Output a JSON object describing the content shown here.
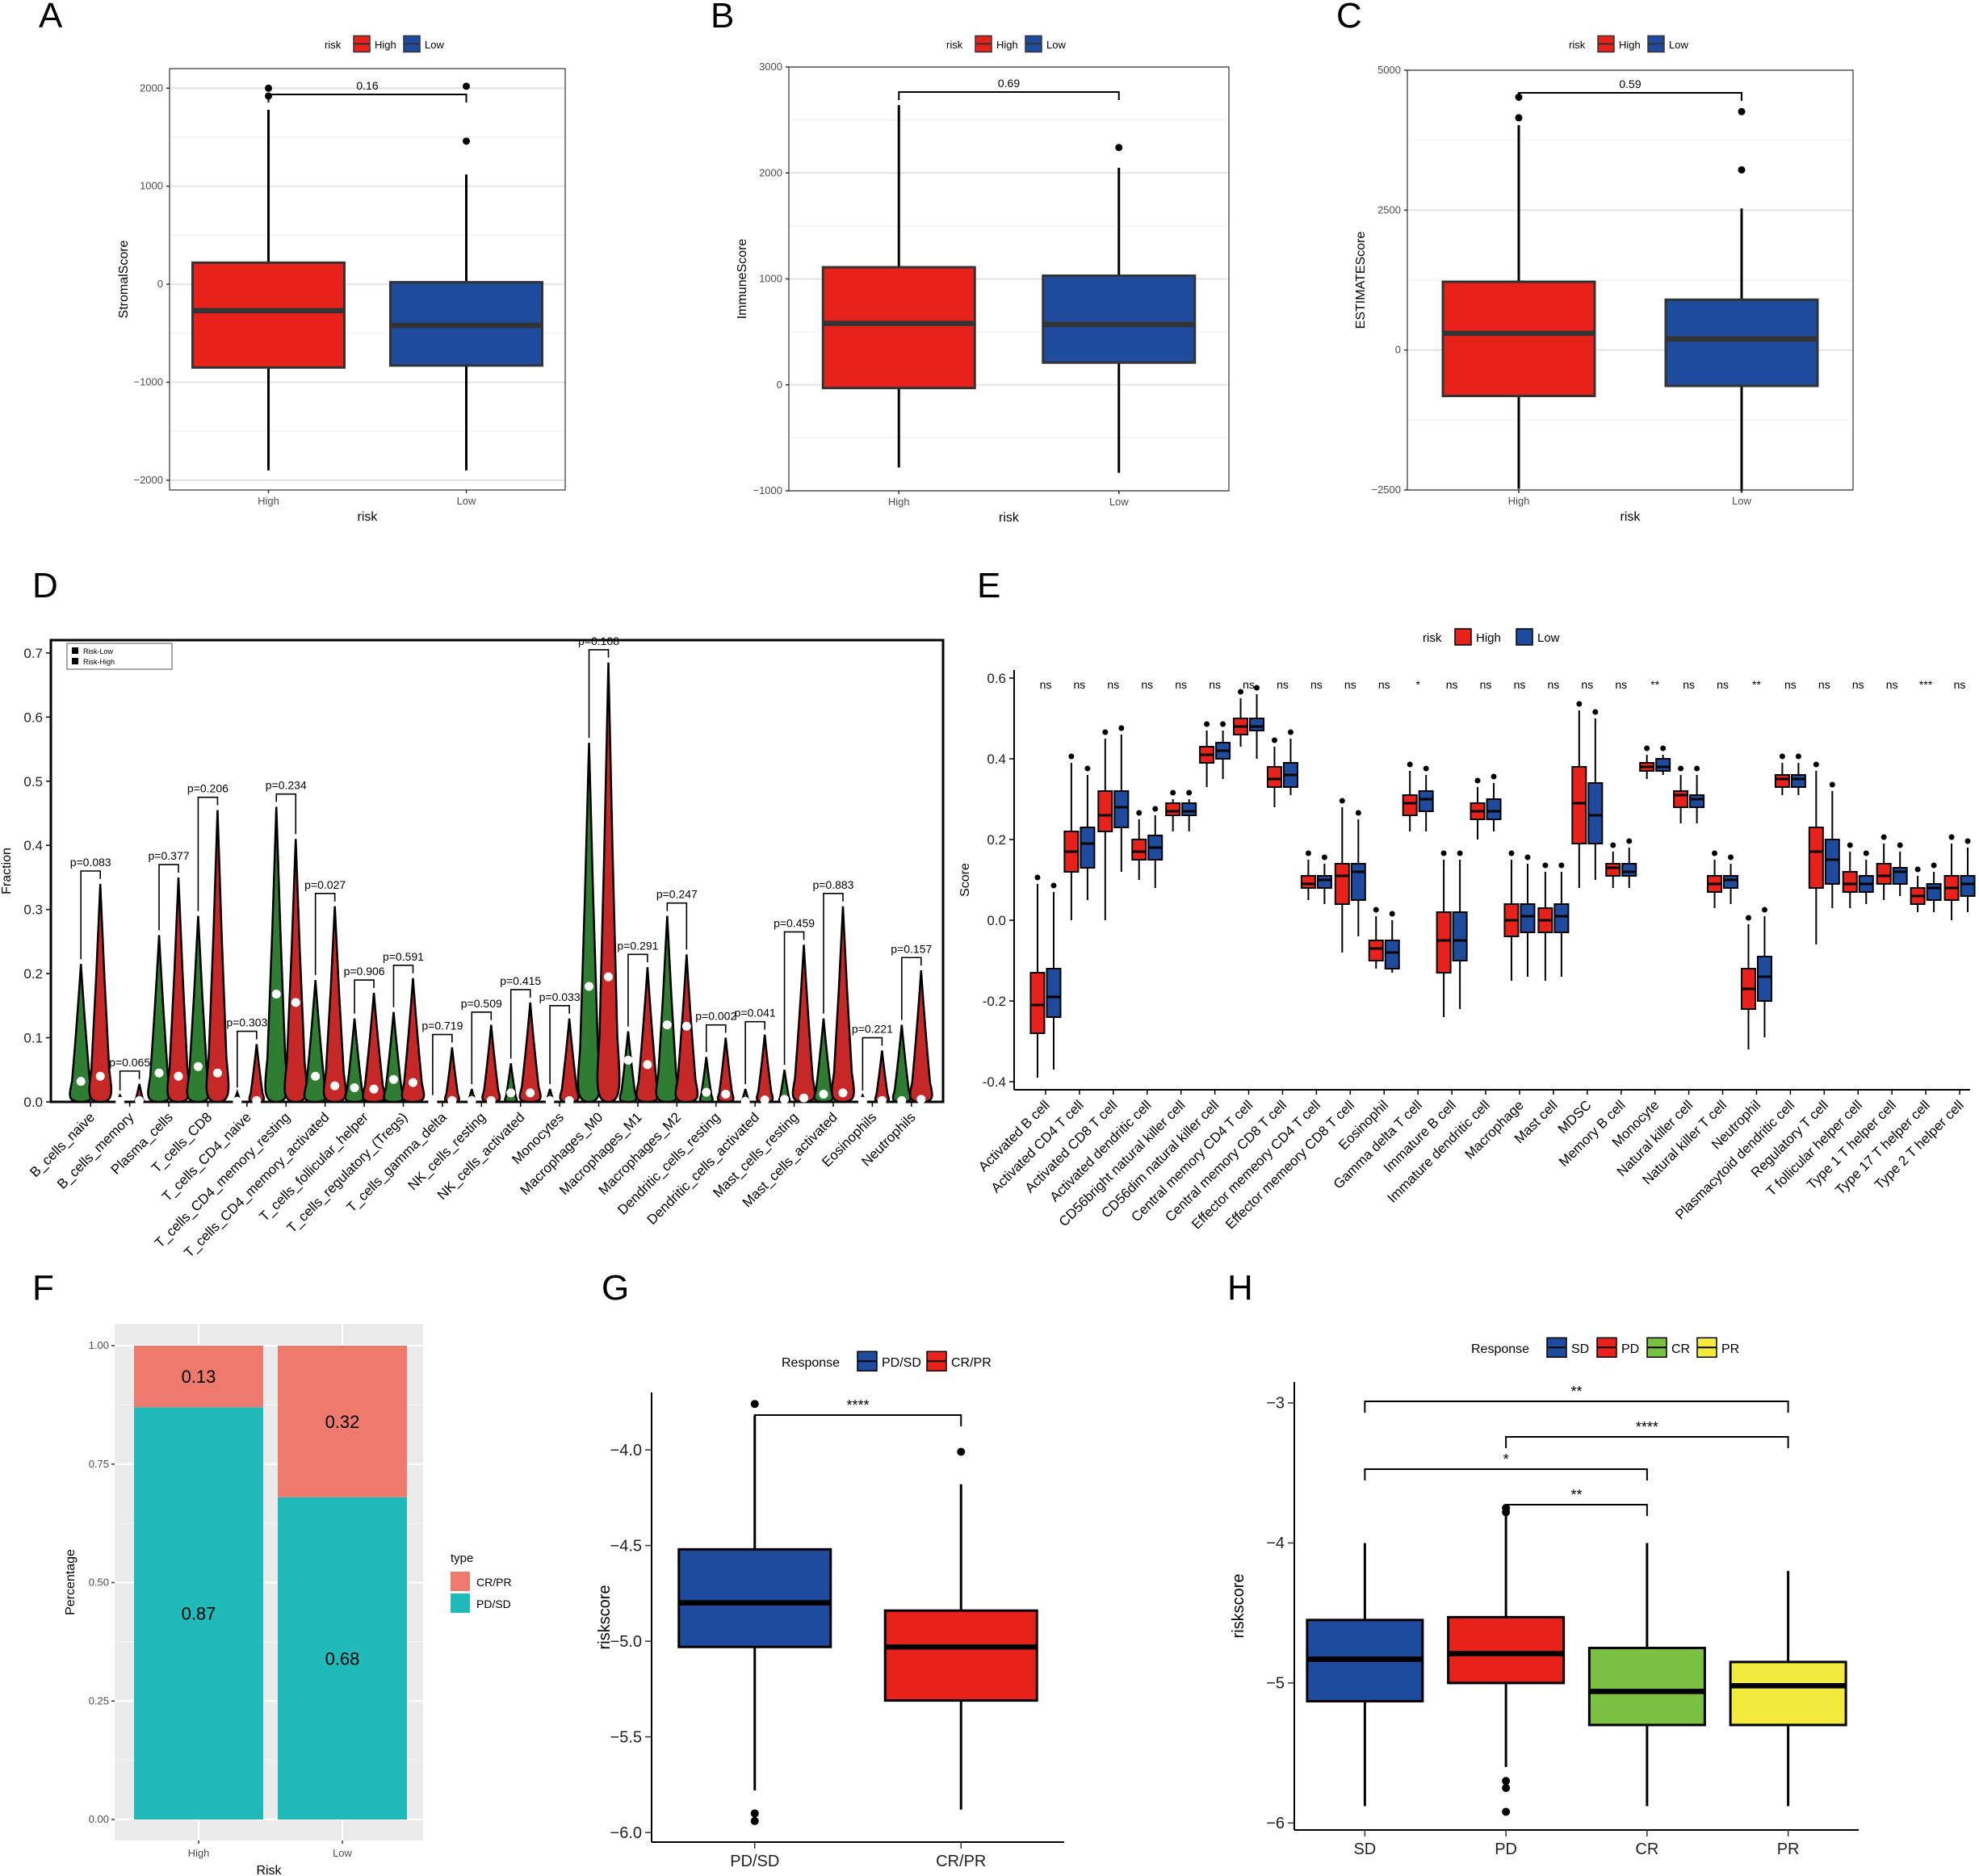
{
  "panel_letters": [
    "A",
    "B",
    "C",
    "D",
    "E",
    "F",
    "G",
    "H"
  ],
  "colors": {
    "high": "#e8221b",
    "low": "#1f4b9e",
    "green": "#7ac043",
    "yellow": "#f2ea3d",
    "salmon": "#ee7a6e",
    "teal": "#1fbab9",
    "violin_green": "#2e7d32",
    "violin_red": "#c62828"
  },
  "chart_data": [
    {
      "id": "A",
      "type": "box",
      "title": "",
      "xlabel": "risk",
      "ylabel": "StromalScore",
      "legend_title": "risk",
      "legend": [
        "High",
        "Low"
      ],
      "categories": [
        "High",
        "Low"
      ],
      "ylim": [
        -2100,
        2200
      ],
      "yticks": [
        -2000,
        -1000,
        0,
        1000,
        2000
      ],
      "ytick_labels": [
        "−2000",
        "−1000",
        "0",
        "1000",
        "2000"
      ],
      "boxes": [
        {
          "name": "High",
          "min": -1900,
          "q1": -850,
          "median": -270,
          "q3": 220,
          "max": 1780,
          "outliers": [
            1920,
            2000
          ]
        },
        {
          "name": "Low",
          "min": -1900,
          "q1": -830,
          "median": -420,
          "q3": 20,
          "max": 1120,
          "outliers": [
            1460,
            2020
          ]
        }
      ],
      "comparisons": [
        {
          "from": 0,
          "to": 1,
          "label": "0.16"
        }
      ]
    },
    {
      "id": "B",
      "type": "box",
      "title": "",
      "xlabel": "risk",
      "ylabel": "ImmuneScore",
      "legend_title": "risk",
      "legend": [
        "High",
        "Low"
      ],
      "categories": [
        "High",
        "Low"
      ],
      "ylim": [
        -1000,
        3000
      ],
      "yticks": [
        -1000,
        0,
        1000,
        2000,
        3000
      ],
      "ytick_labels": [
        "−1000",
        "0",
        "1000",
        "2000",
        "3000"
      ],
      "boxes": [
        {
          "name": "High",
          "min": -780,
          "q1": -30,
          "median": 580,
          "q3": 1110,
          "max": 2640,
          "outliers": []
        },
        {
          "name": "Low",
          "min": -830,
          "q1": 210,
          "median": 570,
          "q3": 1030,
          "max": 2050,
          "outliers": [
            2240
          ]
        }
      ],
      "comparisons": [
        {
          "from": 0,
          "to": 1,
          "label": "0.69"
        }
      ]
    },
    {
      "id": "C",
      "type": "box",
      "title": "",
      "xlabel": "risk",
      "ylabel": "ESTIMATEScore",
      "legend_title": "risk",
      "legend": [
        "High",
        "Low"
      ],
      "categories": [
        "High",
        "Low"
      ],
      "ylim": [
        -2500,
        5000
      ],
      "yticks": [
        -2500,
        0,
        2500,
        5000
      ],
      "ytick_labels": [
        "−2500",
        "0",
        "2500",
        "5000"
      ],
      "boxes": [
        {
          "name": "High",
          "min": -2480,
          "q1": -820,
          "median": 300,
          "q3": 1220,
          "max": 4020,
          "outliers": [
            4150,
            4520
          ]
        },
        {
          "name": "Low",
          "min": -2530,
          "q1": -640,
          "median": 200,
          "q3": 900,
          "max": 2530,
          "outliers": [
            3220,
            4260
          ]
        }
      ],
      "comparisons": [
        {
          "from": 0,
          "to": 1,
          "label": "0.59"
        }
      ]
    },
    {
      "id": "D",
      "type": "violin",
      "xlabel": "",
      "ylabel": "Fraction",
      "legend": [
        "Risk-Low",
        "Risk-High"
      ],
      "ylim": [
        0,
        0.72
      ],
      "yticks": [
        0,
        0.1,
        0.2,
        0.3,
        0.4,
        0.5,
        0.6,
        0.7
      ],
      "ytick_labels": [
        "0.0",
        "0.1",
        "0.2",
        "0.3",
        "0.4",
        "0.5",
        "0.6",
        "0.7"
      ],
      "categories": [
        "B_cells_naive",
        "B_cells_memory",
        "Plasma_cells",
        "T_cells_CD8",
        "T_cells_CD4_naive",
        "T_cells_CD4_memory_resting",
        "T_cells_CD4_memory_activated",
        "T_cells_follicular_helper",
        "T_cells_regulatory_(Tregs)",
        "T_cells_gamma_delta",
        "NK_cells_resting",
        "NK_cells_activated",
        "Monocytes",
        "Macrophages_M0",
        "Macrophages_M1",
        "Macrophages_M2",
        "Dendritic_cells_resting",
        "Dendritic_cells_activated",
        "Mast_cells_resting",
        "Mast_cells_activated",
        "Eosinophils",
        "Neutrophils"
      ],
      "p_values": [
        "p=0.083",
        "p=0.065",
        "p=0.377",
        "p=0.206",
        "p=0.303",
        "p=0.234",
        "p=0.027",
        "p=0.906",
        "p=0.591",
        "p=0.719",
        "p=0.509",
        "p=0.415",
        "p=0.033",
        "p=0.108",
        "p=0.291",
        "p=0.247",
        "p=0.002",
        "p=0.041",
        "p=0.459",
        "p=0.883",
        "p=0.221",
        "p=0.157"
      ],
      "low_max": [
        0.215,
        0.01,
        0.26,
        0.29,
        0.015,
        0.46,
        0.19,
        0.13,
        0.14,
        0.003,
        0.02,
        0.06,
        0.02,
        0.56,
        0.11,
        0.29,
        0.07,
        0.02,
        0.05,
        0.13,
        0.01,
        0.12
      ],
      "high_max": [
        0.34,
        0.028,
        0.35,
        0.455,
        0.09,
        0.41,
        0.305,
        0.17,
        0.193,
        0.085,
        0.12,
        0.155,
        0.13,
        0.685,
        0.21,
        0.23,
        0.1,
        0.105,
        0.245,
        0.305,
        0.08,
        0.205
      ],
      "low_median": [
        0.032,
        0.001,
        0.045,
        0.055,
        0.001,
        0.168,
        0.04,
        0.022,
        0.035,
        0.0,
        0.002,
        0.014,
        0.002,
        0.18,
        0.065,
        0.12,
        0.015,
        0.001,
        0.004,
        0.012,
        0.001,
        0.002
      ],
      "high_median": [
        0.04,
        0.002,
        0.04,
        0.045,
        0.002,
        0.155,
        0.025,
        0.02,
        0.03,
        0.002,
        0.002,
        0.014,
        0.002,
        0.195,
        0.058,
        0.118,
        0.012,
        0.003,
        0.006,
        0.014,
        0.002,
        0.004
      ]
    },
    {
      "id": "E",
      "type": "box",
      "xlabel": "",
      "ylabel": "Score",
      "legend_title": "risk",
      "legend": [
        "High",
        "Low"
      ],
      "ylim": [
        -0.42,
        0.62
      ],
      "yticks": [
        -0.4,
        -0.2,
        0.0,
        0.2,
        0.4,
        0.6
      ],
      "ytick_labels": [
        "-0.4",
        "-0.2",
        "0.0",
        "0.2",
        "0.4",
        "0.6"
      ],
      "categories": [
        "Activated B cell",
        "Activated CD4 T cell",
        "Activated CD8 T cell",
        "Activated dendritic cell",
        "CD56bright natural killer cell",
        "CD56dim natural killer cell",
        "Central memory CD4 T cell",
        "Central memory CD8 T cell",
        "Effector memeory CD4 T cell",
        "Effector memeory CD8 T cell",
        "Eosinophil",
        "Gamma delta T cell",
        "Immature  B cell",
        "Immature dendritic cell",
        "Macrophage",
        "Mast cell",
        "MDSC",
        "Memory B cell",
        "Monocyte",
        "Natural killer cell",
        "Natural killer T cell",
        "Neutrophil",
        "Plasmacytoid dendritic cell",
        "Regulatory T cell",
        "T follicular helper cell",
        "Type 1 T helper cell",
        "Type 17 T helper cell",
        "Type 2 T helper cell"
      ],
      "significance": [
        "ns",
        "ns",
        "ns",
        "ns",
        "ns",
        "ns",
        "ns",
        "ns",
        "ns",
        "ns",
        "ns",
        "*",
        "ns",
        "ns",
        "ns",
        "ns",
        "ns",
        "ns",
        "**",
        "ns",
        "ns",
        "**",
        "ns",
        "ns",
        "ns",
        "ns",
        "***",
        "ns"
      ],
      "high_boxes": [
        [
          -0.39,
          -0.28,
          -0.21,
          -0.13,
          0.09
        ],
        [
          0.0,
          0.12,
          0.17,
          0.22,
          0.39
        ],
        [
          0.0,
          0.22,
          0.26,
          0.32,
          0.45
        ],
        [
          0.1,
          0.15,
          0.17,
          0.2,
          0.25
        ],
        [
          0.22,
          0.26,
          0.27,
          0.29,
          0.3
        ],
        [
          0.33,
          0.39,
          0.41,
          0.43,
          0.47
        ],
        [
          0.43,
          0.46,
          0.48,
          0.5,
          0.55
        ],
        [
          0.28,
          0.33,
          0.35,
          0.38,
          0.43
        ],
        [
          0.05,
          0.08,
          0.09,
          0.11,
          0.15
        ],
        [
          -0.08,
          0.04,
          0.11,
          0.14,
          0.28
        ],
        [
          -0.12,
          -0.1,
          -0.07,
          -0.05,
          0.01
        ],
        [
          0.22,
          0.26,
          0.29,
          0.31,
          0.37
        ],
        [
          -0.24,
          -0.13,
          -0.05,
          0.02,
          0.15
        ],
        [
          0.2,
          0.25,
          0.27,
          0.29,
          0.33
        ],
        [
          -0.15,
          -0.04,
          0.0,
          0.04,
          0.15
        ],
        [
          -0.15,
          -0.03,
          0.0,
          0.03,
          0.12
        ],
        [
          0.08,
          0.19,
          0.29,
          0.38,
          0.52
        ],
        [
          0.08,
          0.11,
          0.13,
          0.14,
          0.17
        ],
        [
          0.35,
          0.37,
          0.38,
          0.39,
          0.41
        ],
        [
          0.24,
          0.28,
          0.31,
          0.32,
          0.36
        ],
        [
          0.03,
          0.07,
          0.09,
          0.11,
          0.15
        ],
        [
          -0.32,
          -0.22,
          -0.17,
          -0.12,
          -0.01
        ],
        [
          0.31,
          0.33,
          0.35,
          0.36,
          0.39
        ],
        [
          -0.06,
          0.08,
          0.17,
          0.23,
          0.37
        ],
        [
          0.03,
          0.07,
          0.09,
          0.12,
          0.17
        ],
        [
          0.05,
          0.09,
          0.11,
          0.14,
          0.19
        ],
        [
          0.02,
          0.04,
          0.06,
          0.08,
          0.11
        ],
        [
          0.0,
          0.05,
          0.08,
          0.11,
          0.19
        ]
      ],
      "low_boxes": [
        [
          -0.37,
          -0.24,
          -0.19,
          -0.12,
          0.07
        ],
        [
          0.05,
          0.13,
          0.19,
          0.23,
          0.36
        ],
        [
          0.12,
          0.23,
          0.28,
          0.32,
          0.46
        ],
        [
          0.08,
          0.15,
          0.18,
          0.21,
          0.26
        ],
        [
          0.22,
          0.26,
          0.27,
          0.29,
          0.3
        ],
        [
          0.35,
          0.4,
          0.42,
          0.44,
          0.47
        ],
        [
          0.4,
          0.47,
          0.48,
          0.5,
          0.56
        ],
        [
          0.31,
          0.33,
          0.36,
          0.39,
          0.45
        ],
        [
          0.04,
          0.08,
          0.1,
          0.11,
          0.14
        ],
        [
          -0.04,
          0.05,
          0.12,
          0.14,
          0.25
        ],
        [
          -0.13,
          -0.12,
          -0.08,
          -0.05,
          0.0
        ],
        [
          0.22,
          0.27,
          0.3,
          0.32,
          0.36
        ],
        [
          -0.22,
          -0.1,
          -0.05,
          0.02,
          0.15
        ],
        [
          0.22,
          0.25,
          0.27,
          0.3,
          0.34
        ],
        [
          -0.14,
          -0.03,
          0.01,
          0.04,
          0.14
        ],
        [
          -0.14,
          -0.03,
          0.01,
          0.04,
          0.12
        ],
        [
          0.1,
          0.19,
          0.26,
          0.34,
          0.5
        ],
        [
          0.08,
          0.11,
          0.12,
          0.14,
          0.18
        ],
        [
          0.36,
          0.37,
          0.38,
          0.4,
          0.41
        ],
        [
          0.24,
          0.28,
          0.3,
          0.31,
          0.36
        ],
        [
          0.04,
          0.08,
          0.1,
          0.11,
          0.14
        ],
        [
          -0.29,
          -0.2,
          -0.14,
          -0.09,
          0.01
        ],
        [
          0.31,
          0.33,
          0.35,
          0.36,
          0.39
        ],
        [
          0.03,
          0.09,
          0.15,
          0.2,
          0.32
        ],
        [
          0.04,
          0.07,
          0.09,
          0.11,
          0.15
        ],
        [
          0.06,
          0.09,
          0.12,
          0.13,
          0.17
        ],
        [
          0.02,
          0.05,
          0.08,
          0.09,
          0.12
        ],
        [
          0.02,
          0.06,
          0.09,
          0.11,
          0.18
        ]
      ]
    },
    {
      "id": "F",
      "type": "stacked-bar",
      "xlabel": "Risk",
      "ylabel": "Percentage",
      "legend_title": "type",
      "legend": [
        "CR/PR",
        "PD/SD"
      ],
      "categories": [
        "High",
        "Low"
      ],
      "series": [
        {
          "name": "PD/SD",
          "values": [
            0.87,
            0.68
          ],
          "labels": [
            "0.87",
            "0.68"
          ]
        },
        {
          "name": "CR/PR",
          "values": [
            0.13,
            0.32
          ],
          "labels": [
            "0.13",
            "0.32"
          ]
        }
      ],
      "ylim": [
        0,
        1
      ],
      "yticks": [
        0,
        0.25,
        0.5,
        0.75,
        1
      ],
      "ytick_labels": [
        "0.00",
        "0.25",
        "0.50",
        "0.75",
        "1.00"
      ]
    },
    {
      "id": "G",
      "type": "box",
      "xlabel": "",
      "ylabel": "riskscore",
      "legend_title": "Response",
      "legend": [
        "PD/SD",
        "CR/PR"
      ],
      "categories": [
        "PD/SD",
        "CR/PR"
      ],
      "ylim": [
        -6.05,
        -3.7
      ],
      "yticks": [
        -6.0,
        -5.5,
        -5.0,
        -4.5,
        -4.0
      ],
      "ytick_labels": [
        "−6.0",
        "−5.5",
        "−5.0",
        "−4.5",
        "−4.0"
      ],
      "boxes": [
        {
          "name": "PD/SD",
          "min": -5.78,
          "q1": -5.03,
          "median": -4.8,
          "q3": -4.52,
          "max": -3.82,
          "outliers": [
            -3.76,
            -5.9,
            -5.94
          ]
        },
        {
          "name": "CR/PR",
          "min": -5.88,
          "q1": -5.31,
          "median": -5.03,
          "q3": -4.84,
          "max": -4.18,
          "outliers": [
            -4.01
          ]
        }
      ],
      "comparisons": [
        {
          "from": 0,
          "to": 1,
          "label": "****"
        }
      ]
    },
    {
      "id": "H",
      "type": "box",
      "xlabel": "",
      "ylabel": "riskscore",
      "legend_title": "Response",
      "legend": [
        "SD",
        "PD",
        "CR",
        "PR"
      ],
      "categories": [
        "SD",
        "PD",
        "CR",
        "PR"
      ],
      "ylim": [
        -6.05,
        -2.85
      ],
      "yticks": [
        -6,
        -5,
        -4,
        -3
      ],
      "ytick_labels": [
        "−6",
        "−5",
        "−4",
        "−3"
      ],
      "boxes": [
        {
          "name": "SD",
          "min": -5.88,
          "q1": -5.13,
          "median": -4.83,
          "q3": -4.55,
          "max": -4.0,
          "outliers": []
        },
        {
          "name": "PD",
          "min": -5.6,
          "q1": -5.0,
          "median": -4.79,
          "q3": -4.53,
          "max": -3.78,
          "outliers": [
            -3.75,
            -3.78,
            -5.7,
            -5.75,
            -5.92
          ]
        },
        {
          "name": "CR",
          "min": -5.88,
          "q1": -5.3,
          "median": -5.06,
          "q3": -4.75,
          "max": -4.0,
          "outliers": []
        },
        {
          "name": "PR",
          "min": -5.88,
          "q1": -5.3,
          "median": -5.02,
          "q3": -4.85,
          "max": -4.2,
          "outliers": []
        }
      ],
      "comparisons": [
        {
          "from": 0,
          "to": 3,
          "label": "**"
        },
        {
          "from": 1,
          "to": 3,
          "label": "****"
        },
        {
          "from": 0,
          "to": 2,
          "label": "*"
        },
        {
          "from": 1,
          "to": 2,
          "label": "**"
        }
      ]
    }
  ]
}
